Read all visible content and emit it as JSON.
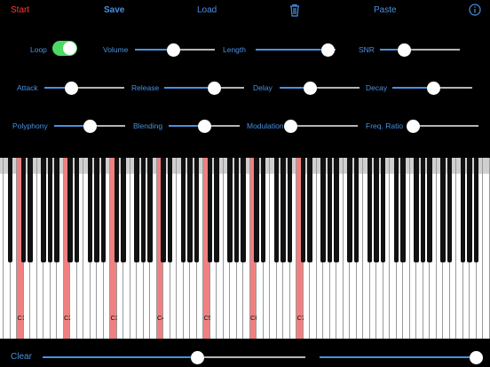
{
  "toolbar": {
    "start": "Start",
    "save": "Save",
    "load": "Load",
    "trash_icon": "trash-icon",
    "paste": "Paste",
    "info_icon": "info-icon"
  },
  "colors": {
    "accent": "#4a90e2",
    "start": "#ff3b30",
    "toggle_on": "#4cd964",
    "highlight": "#f08080"
  },
  "controls": {
    "loop": {
      "label": "Loop",
      "on": true
    },
    "volume": {
      "label": "Volume",
      "value": 0.48
    },
    "length": {
      "label": "Length",
      "value": 0.9
    },
    "snr": {
      "label": "SNR",
      "value": 0.3
    },
    "attack": {
      "label": "Attack",
      "value": 0.34
    },
    "release": {
      "label": "Release",
      "value": 0.63
    },
    "delay": {
      "label": "Delay",
      "value": 0.38
    },
    "decay": {
      "label": "Decay",
      "value": 0.52
    },
    "polyphony": {
      "label": "Polyphony",
      "value": 0.5
    },
    "blending": {
      "label": "Blending",
      "value": 0.5
    },
    "modulation": {
      "label": "Modulation",
      "value": 0.02
    },
    "freq_ratio": {
      "label": "Freq. Ratio",
      "value": 0.05
    }
  },
  "keyboard": {
    "c_labels": [
      "C1",
      "C2",
      "C3",
      "C4",
      "C5",
      "C6",
      "C7"
    ]
  },
  "bottom": {
    "clear": "Clear",
    "slider1": 0.59,
    "slider2": 0.98
  }
}
